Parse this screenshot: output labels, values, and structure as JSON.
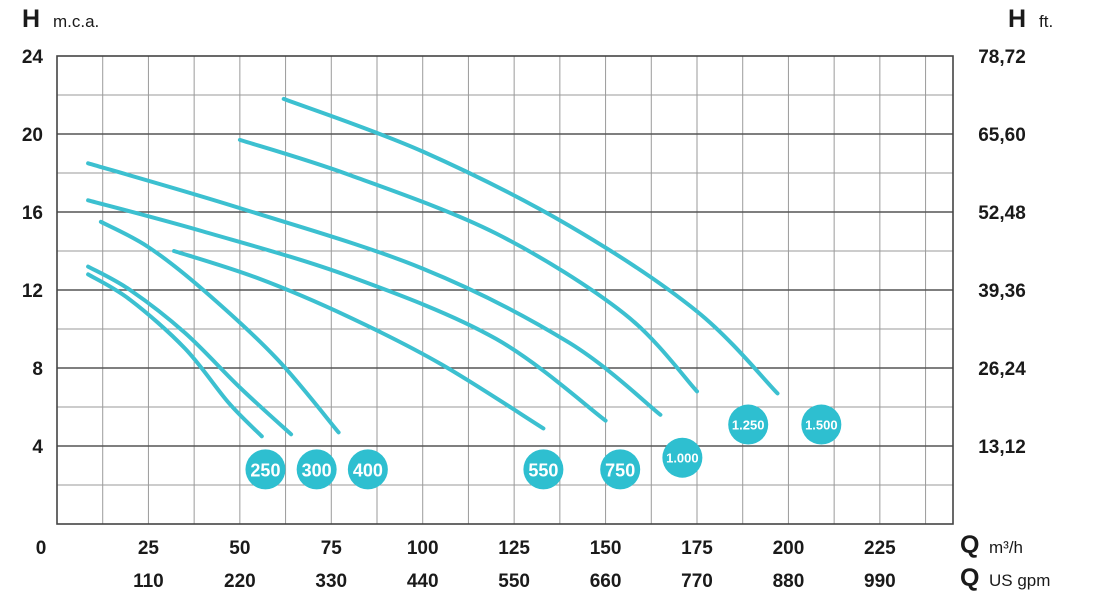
{
  "chart_data": {
    "type": "line",
    "y_left_label": {
      "letter": "H",
      "unit": "m.c.a."
    },
    "y_right_label": {
      "letter": "H",
      "unit": "ft."
    },
    "x_label_top": {
      "letter": "Q",
      "unit": "m³/h"
    },
    "x_label_bottom": {
      "letter": "Q",
      "unit": "US gpm"
    },
    "xlim": [
      0,
      245
    ],
    "ylim": [
      0,
      24
    ],
    "y_ticks": [
      4,
      8,
      12,
      16,
      20,
      24
    ],
    "y_right_ticks": [
      "13,12",
      "26,24",
      "39,36",
      "52,48",
      "65,60",
      "78,72"
    ],
    "x_ticks_m3h": [
      0,
      25,
      50,
      75,
      100,
      125,
      150,
      175,
      200,
      225
    ],
    "x_ticks_gpm": [
      {
        "x": 25,
        "label": "110"
      },
      {
        "x": 50,
        "label": "220"
      },
      {
        "x": 75,
        "label": "330"
      },
      {
        "x": 100,
        "label": "440"
      },
      {
        "x": 125,
        "label": "550"
      },
      {
        "x": 150,
        "label": "660"
      },
      {
        "x": 175,
        "label": "770"
      },
      {
        "x": 200,
        "label": "880"
      },
      {
        "x": 225,
        "label": "990"
      }
    ],
    "grid": true,
    "line_color": "#3cc0d0",
    "badge_color": "#2ebfd0",
    "series": [
      {
        "name": "250",
        "points": [
          [
            8.5,
            12.8
          ],
          [
            20,
            11.5
          ],
          [
            35,
            9
          ],
          [
            47,
            6.2
          ],
          [
            56,
            4.5
          ]
        ],
        "badge": {
          "x": 57,
          "y": 2.8
        }
      },
      {
        "name": "300",
        "points": [
          [
            8.5,
            13.2
          ],
          [
            20,
            12
          ],
          [
            35,
            9.8
          ],
          [
            50,
            7
          ],
          [
            64,
            4.6
          ]
        ],
        "badge": {
          "x": 71,
          "y": 2.8
        }
      },
      {
        "name": "400",
        "points": [
          [
            12,
            15.5
          ],
          [
            25,
            14.2
          ],
          [
            40,
            12
          ],
          [
            60,
            8.5
          ],
          [
            77,
            4.7
          ]
        ],
        "badge": {
          "x": 85,
          "y": 2.8
        }
      },
      {
        "name": "550",
        "points": [
          [
            32,
            14
          ],
          [
            55,
            12.6
          ],
          [
            80,
            10.6
          ],
          [
            105,
            8.2
          ],
          [
            133,
            4.9
          ]
        ],
        "badge": {
          "x": 133,
          "y": 2.8
        }
      },
      {
        "name": "750",
        "points": [
          [
            8.5,
            16.6
          ],
          [
            40,
            15
          ],
          [
            80,
            12.7
          ],
          [
            120,
            9.5
          ],
          [
            150,
            5.3
          ]
        ],
        "badge": {
          "x": 154,
          "y": 2.8
        }
      },
      {
        "name": "1.000",
        "points": [
          [
            8.5,
            18.5
          ],
          [
            50,
            16.2
          ],
          [
            100,
            13.1
          ],
          [
            140,
            9.3
          ],
          [
            165,
            5.6
          ]
        ],
        "badge": {
          "x": 171,
          "y": 3.4
        }
      },
      {
        "name": "1.250",
        "points": [
          [
            50,
            19.7
          ],
          [
            80,
            17.9
          ],
          [
            120,
            14.9
          ],
          [
            155,
            10.8
          ],
          [
            175,
            6.8
          ]
        ],
        "badge": {
          "x": 189,
          "y": 5.1
        }
      },
      {
        "name": "1.500",
        "points": [
          [
            62,
            21.8
          ],
          [
            100,
            19.1
          ],
          [
            140,
            15.3
          ],
          [
            175,
            10.9
          ],
          [
            197,
            6.7
          ]
        ],
        "badge": {
          "x": 209,
          "y": 5.1
        }
      }
    ]
  }
}
